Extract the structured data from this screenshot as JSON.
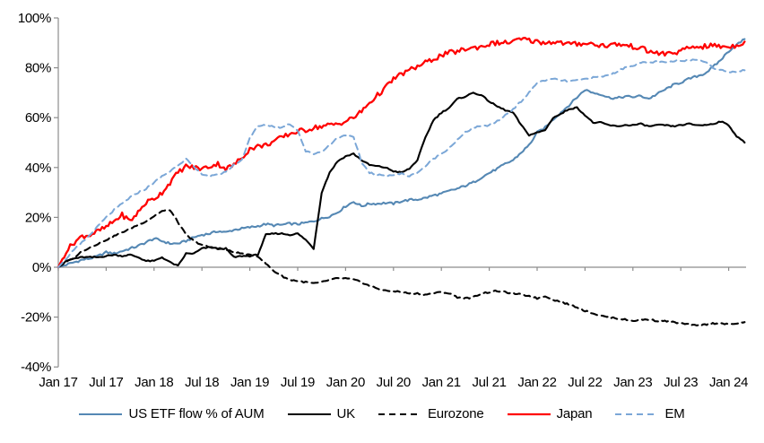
{
  "chart_data": {
    "type": "line",
    "title": "",
    "x_unit": "month",
    "x_start_label": "Jan 17",
    "x_tick_labels": [
      "Jan 17",
      "Jul 17",
      "Jan 18",
      "Jul 18",
      "Jan 19",
      "Jul 19",
      "Jan 20",
      "Jul 20",
      "Jan 21",
      "Jul 21",
      "Jan 22",
      "Jul 22",
      "Jan 23",
      "Jul 23",
      "Jan 24"
    ],
    "y_ticks": [
      100,
      80,
      60,
      40,
      20,
      0,
      -20,
      -40
    ],
    "y_tick_suffix": "%",
    "ylim": [
      -40,
      100
    ],
    "grid": false,
    "legend_position": "bottom",
    "axis_color": "#8c8c8c",
    "text_color": "#000000",
    "background_color": "#ffffff",
    "series": [
      {
        "name": "US ETF flow % of AUM",
        "color": "#5588B4",
        "dash": "solid",
        "width": 2.1,
        "jitter": 0.45,
        "values": [
          0,
          1,
          2,
          3,
          3.5,
          4.5,
          6,
          5.5,
          6.5,
          7.5,
          8.5,
          10,
          11.5,
          10.5,
          9.5,
          9.5,
          10.5,
          12,
          13,
          13.5,
          14.5,
          14,
          15,
          15.5,
          16,
          16.5,
          17.3,
          16.8,
          17,
          17.5,
          17.3,
          17.8,
          18.5,
          19.5,
          20.5,
          22,
          24.5,
          26.3,
          24.5,
          25.5,
          25.5,
          25.8,
          25.5,
          26.5,
          27,
          27.2,
          27.8,
          28.8,
          29.5,
          30.6,
          31.5,
          32.7,
          34,
          36,
          37.8,
          39.5,
          41.4,
          43,
          46,
          49,
          54,
          56,
          59.3,
          62.2,
          65,
          68.2,
          71.2,
          70,
          69.4,
          68,
          67.8,
          68.5,
          68.3,
          68.7,
          67.6,
          69.4,
          71.2,
          73,
          74.1,
          75.5,
          76.6,
          77.7,
          80.2,
          83.1,
          86.7,
          89.2,
          91.5
        ]
      },
      {
        "name": "UK",
        "color": "#000000",
        "dash": "solid",
        "width": 2.1,
        "jitter": 0.25,
        "values": [
          0,
          2.5,
          3.5,
          4,
          4,
          4,
          4.5,
          5,
          4.5,
          5,
          4,
          2.5,
          2.5,
          4,
          2,
          0.5,
          5.5,
          5.5,
          7.5,
          8,
          7.5,
          7.5,
          4,
          4.5,
          4.5,
          5,
          13,
          13.5,
          13.5,
          13,
          13.5,
          11,
          7.5,
          30,
          38,
          42.5,
          44.5,
          45.5,
          43,
          41,
          40.5,
          40,
          38.5,
          38,
          39.5,
          43,
          52,
          59,
          62,
          64,
          67.5,
          68.5,
          70,
          69,
          66.5,
          64.5,
          63,
          62,
          57,
          53,
          54,
          55,
          60,
          61.5,
          63.5,
          64,
          61,
          58,
          58,
          57,
          56.5,
          57,
          57,
          57.5,
          56.5,
          57,
          57,
          56.5,
          57,
          57.5,
          57,
          57,
          57.5,
          58.5,
          57,
          52.5,
          50
        ]
      },
      {
        "name": "Eurozone",
        "color": "#000000",
        "dash": "dashed",
        "width": 2.1,
        "jitter": 0.3,
        "values": [
          0,
          2,
          4,
          6.5,
          8,
          9.5,
          11,
          12.5,
          14,
          15.5,
          17,
          18.5,
          20.5,
          22.5,
          23,
          18,
          13,
          10.5,
          9,
          8,
          7.5,
          7,
          6,
          5.5,
          4.8,
          4.5,
          1.5,
          -1.5,
          -3.5,
          -5,
          -5.5,
          -6,
          -6.5,
          -6,
          -5,
          -4.5,
          -4.5,
          -5,
          -6,
          -7.5,
          -8.5,
          -9.5,
          -9.5,
          -10,
          -10.5,
          -10.5,
          -11,
          -10.5,
          -10,
          -10.5,
          -12,
          -12.5,
          -12,
          -10.5,
          -10,
          -9.5,
          -10,
          -10.5,
          -11,
          -11.5,
          -12.5,
          -11.5,
          -13,
          -14,
          -15,
          -16,
          -17.5,
          -18.5,
          -19.5,
          -20,
          -20.5,
          -21,
          -21.5,
          -21,
          -21,
          -21.5,
          -21.5,
          -22,
          -22.5,
          -23,
          -23.5,
          -23,
          -22.5,
          -22.5,
          -23,
          -22.5,
          -22
        ]
      },
      {
        "name": "Japan",
        "color": "#FF0000",
        "dash": "solid",
        "width": 2.3,
        "jitter": 1.0,
        "values": [
          0,
          6.5,
          10,
          12.5,
          13,
          14.5,
          16,
          18.5,
          21,
          18.5,
          22,
          26,
          27.5,
          30,
          34,
          38,
          40.5,
          40,
          39.5,
          40.5,
          41.5,
          39.5,
          41,
          44,
          47.5,
          48.5,
          49,
          50.5,
          52,
          53.5,
          54.5,
          55,
          56,
          56.5,
          57,
          57.5,
          58.5,
          60,
          62.5,
          66,
          69,
          72,
          75.5,
          77.5,
          79,
          80.5,
          82,
          83.5,
          85,
          86,
          86.5,
          87.5,
          88,
          88.5,
          89.5,
          90,
          90,
          90.5,
          91.5,
          91,
          90.5,
          90,
          90.5,
          90,
          89.5,
          89.5,
          90,
          89.5,
          89,
          89,
          89.5,
          89,
          88.5,
          88,
          86.5,
          86,
          85.5,
          86,
          86.5,
          88,
          88.5,
          88.5,
          89,
          88.5,
          88.5,
          89,
          90.5
        ]
      },
      {
        "name": "EM",
        "color": "#7BA7D7",
        "dash": "dashed",
        "width": 2.0,
        "jitter": 0.35,
        "values": [
          0,
          3.5,
          7,
          10,
          13,
          16.5,
          20,
          23,
          25.5,
          28,
          30,
          31.5,
          34,
          36.5,
          38.5,
          41,
          43.5,
          40,
          37.5,
          36.5,
          37,
          38.5,
          41,
          43,
          52,
          56.5,
          57,
          56.5,
          56,
          57.5,
          55,
          46.5,
          45.5,
          46.5,
          49,
          52,
          53,
          52,
          42,
          38,
          37,
          36.8,
          37,
          37.5,
          36.5,
          38,
          40.5,
          43.5,
          45.5,
          48,
          51,
          54,
          56,
          56.5,
          57,
          58.5,
          61,
          63.5,
          66.5,
          70,
          74,
          75,
          75.5,
          75,
          74.5,
          75,
          75.5,
          76,
          76.5,
          77,
          78.5,
          80,
          81,
          82,
          82,
          82.5,
          82,
          82.5,
          83,
          83,
          83.5,
          82.5,
          80,
          79,
          78.5,
          78.5,
          79
        ]
      }
    ]
  }
}
